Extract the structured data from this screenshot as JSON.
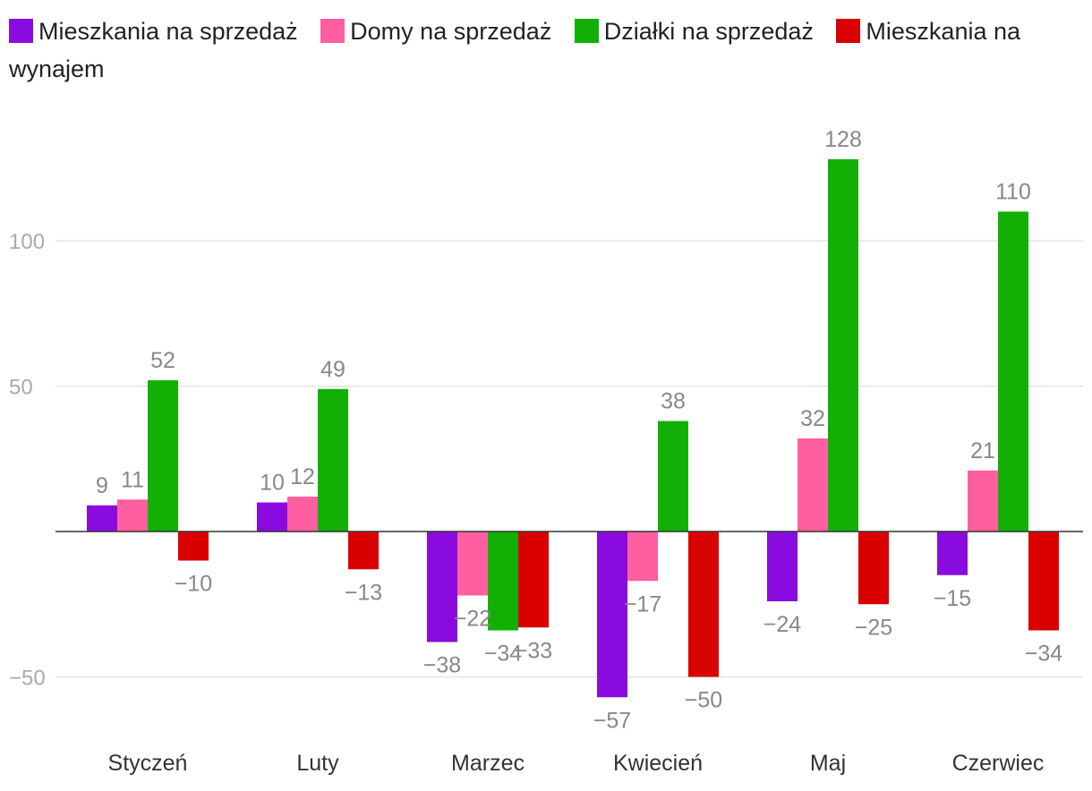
{
  "chart_data": {
    "type": "bar",
    "title": "",
    "xlabel": "",
    "ylabel": "",
    "ylim": [
      -70,
      135
    ],
    "yticks": [
      -50,
      50,
      100
    ],
    "grid": true,
    "legend_position": "top-left",
    "categories": [
      "Styczeń",
      "Luty",
      "Marzec",
      "Kwiecień",
      "Maj",
      "Czerwiec"
    ],
    "series": [
      {
        "name": "Mieszkania na sprzedaż",
        "color": "#8a0be0",
        "values": [
          9,
          10,
          -38,
          -57,
          -24,
          -15
        ]
      },
      {
        "name": "Domy na sprzedaż",
        "color": "#ff5fa0",
        "values": [
          11,
          12,
          -22,
          -17,
          32,
          21
        ]
      },
      {
        "name": "Działki na sprzedaż",
        "color": "#12b005",
        "values": [
          52,
          49,
          -34,
          38,
          128,
          110
        ]
      },
      {
        "name": "Mieszkania na wynajem",
        "color": "#d90000",
        "values": [
          -10,
          -13,
          -33,
          -50,
          -25,
          -34
        ]
      }
    ]
  }
}
